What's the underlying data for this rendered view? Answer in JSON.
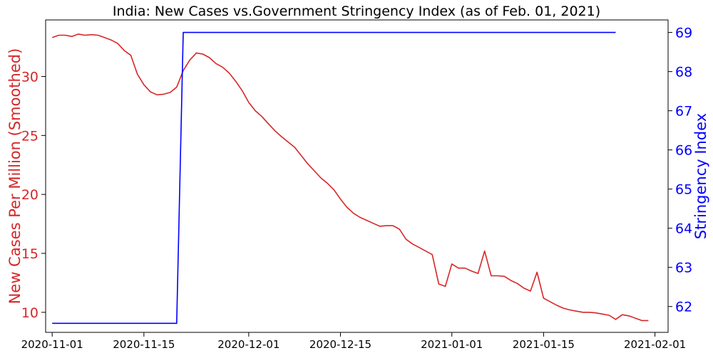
{
  "chart_data": {
    "type": "line",
    "title": "India: New Cases vs.Government Stringency Index (as of Feb. 01, 2021)",
    "left_axis": {
      "label": "New Cases Per Million (Smoothed)",
      "color": "#d62728",
      "ylim": [
        8.3,
        34.8
      ],
      "ticks": [
        10,
        15,
        20,
        25,
        30
      ]
    },
    "right_axis": {
      "label": "Stringency Index",
      "color": "#0000ff",
      "ylim": [
        61.34,
        69.32
      ],
      "ticks": [
        62,
        63,
        64,
        65,
        66,
        67,
        68,
        69
      ]
    },
    "x_axis": {
      "range": [
        "2020-10-31",
        "2021-02-03"
      ],
      "ticks": [
        "2020-11-01",
        "2020-11-15",
        "2020-12-01",
        "2020-12-15",
        "2021-01-01",
        "2021-01-15",
        "2021-02-01"
      ]
    },
    "grid": false,
    "legend": "none",
    "series": [
      {
        "axis": "left",
        "color": "#d62728",
        "points": [
          [
            "2020-11-01",
            33.3
          ],
          [
            "2020-11-02",
            33.5
          ],
          [
            "2020-11-03",
            33.5
          ],
          [
            "2020-11-04",
            33.4
          ],
          [
            "2020-11-05",
            33.6
          ],
          [
            "2020-11-06",
            33.5
          ],
          [
            "2020-11-07",
            33.55
          ],
          [
            "2020-11-08",
            33.5
          ],
          [
            "2020-11-09",
            33.3
          ],
          [
            "2020-11-10",
            33.1
          ],
          [
            "2020-11-11",
            32.8
          ],
          [
            "2020-11-12",
            32.2
          ],
          [
            "2020-11-13",
            31.8
          ],
          [
            "2020-11-14",
            30.2
          ],
          [
            "2020-11-15",
            29.3
          ],
          [
            "2020-11-16",
            28.7
          ],
          [
            "2020-11-17",
            28.45
          ],
          [
            "2020-11-18",
            28.5
          ],
          [
            "2020-11-19",
            28.65
          ],
          [
            "2020-11-20",
            29.1
          ],
          [
            "2020-11-21",
            30.5
          ],
          [
            "2020-11-22",
            31.4
          ],
          [
            "2020-11-23",
            32.0
          ],
          [
            "2020-11-24",
            31.9
          ],
          [
            "2020-11-25",
            31.6
          ],
          [
            "2020-11-26",
            31.1
          ],
          [
            "2020-11-27",
            30.8
          ],
          [
            "2020-11-28",
            30.3
          ],
          [
            "2020-11-29",
            29.6
          ],
          [
            "2020-11-30",
            28.8
          ],
          [
            "2020-12-01",
            27.8
          ],
          [
            "2020-12-02",
            27.1
          ],
          [
            "2020-12-03",
            26.6
          ],
          [
            "2020-12-04",
            26.0
          ],
          [
            "2020-12-05",
            25.4
          ],
          [
            "2020-12-06",
            24.9
          ],
          [
            "2020-12-07",
            24.45
          ],
          [
            "2020-12-08",
            24.0
          ],
          [
            "2020-12-09",
            23.3
          ],
          [
            "2020-12-10",
            22.6
          ],
          [
            "2020-12-11",
            22.0
          ],
          [
            "2020-12-12",
            21.4
          ],
          [
            "2020-12-13",
            20.95
          ],
          [
            "2020-12-14",
            20.4
          ],
          [
            "2020-12-15",
            19.6
          ],
          [
            "2020-12-16",
            18.9
          ],
          [
            "2020-12-17",
            18.4
          ],
          [
            "2020-12-18",
            18.05
          ],
          [
            "2020-12-19",
            17.8
          ],
          [
            "2020-12-20",
            17.55
          ],
          [
            "2020-12-21",
            17.3
          ],
          [
            "2020-12-22",
            17.35
          ],
          [
            "2020-12-23",
            17.35
          ],
          [
            "2020-12-24",
            17.05
          ],
          [
            "2020-12-25",
            16.2
          ],
          [
            "2020-12-26",
            15.8
          ],
          [
            "2020-12-27",
            15.5
          ],
          [
            "2020-12-28",
            15.2
          ],
          [
            "2020-12-29",
            14.9
          ],
          [
            "2020-12-30",
            12.4
          ],
          [
            "2020-12-31",
            12.2
          ],
          [
            "2021-01-01",
            14.1
          ],
          [
            "2021-01-02",
            13.75
          ],
          [
            "2021-01-03",
            13.75
          ],
          [
            "2021-01-04",
            13.5
          ],
          [
            "2021-01-05",
            13.3
          ],
          [
            "2021-01-06",
            15.2
          ],
          [
            "2021-01-07",
            13.1
          ],
          [
            "2021-01-08",
            13.1
          ],
          [
            "2021-01-09",
            13.05
          ],
          [
            "2021-01-10",
            12.7
          ],
          [
            "2021-01-11",
            12.45
          ],
          [
            "2021-01-12",
            12.05
          ],
          [
            "2021-01-13",
            11.8
          ],
          [
            "2021-01-14",
            13.4
          ],
          [
            "2021-01-15",
            11.2
          ],
          [
            "2021-01-16",
            10.9
          ],
          [
            "2021-01-17",
            10.6
          ],
          [
            "2021-01-18",
            10.35
          ],
          [
            "2021-01-19",
            10.2
          ],
          [
            "2021-01-20",
            10.1
          ],
          [
            "2021-01-21",
            10.0
          ],
          [
            "2021-01-22",
            10.0
          ],
          [
            "2021-01-23",
            9.95
          ],
          [
            "2021-01-24",
            9.85
          ],
          [
            "2021-01-25",
            9.75
          ],
          [
            "2021-01-26",
            9.4
          ],
          [
            "2021-01-27",
            9.8
          ],
          [
            "2021-01-28",
            9.7
          ],
          [
            "2021-01-29",
            9.5
          ],
          [
            "2021-01-30",
            9.3
          ],
          [
            "2021-01-31",
            9.3
          ]
        ]
      },
      {
        "axis": "right",
        "color": "#0000ff",
        "points": [
          [
            "2020-11-01",
            61.57
          ],
          [
            "2020-11-20",
            61.57
          ],
          [
            "2020-11-21",
            69.0
          ],
          [
            "2021-01-26",
            69.0
          ]
        ]
      }
    ]
  }
}
